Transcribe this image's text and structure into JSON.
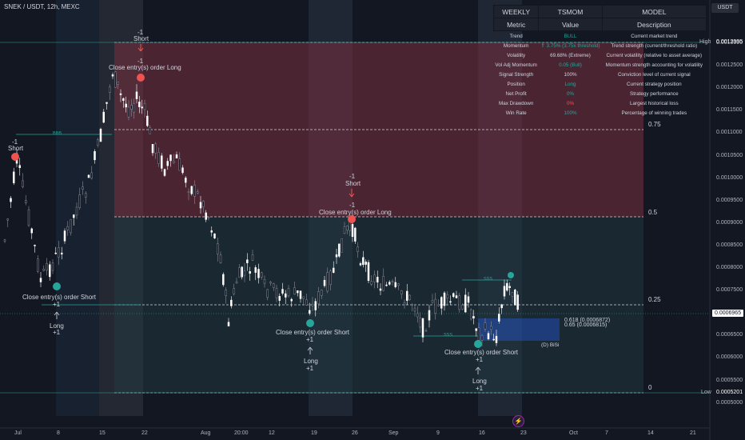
{
  "symbol": {
    "title": "SNEK / USDT, 12h, MEXC",
    "currency": "USDT"
  },
  "table": {
    "headers": [
      "WEEKLY",
      "TSMOM",
      "MODEL"
    ],
    "subheaders": [
      "Metric",
      "Value",
      "Description"
    ],
    "rows": [
      {
        "metric": "Trend",
        "value": "BULL",
        "color": "green",
        "desc": "Current market trend"
      },
      {
        "metric": "Momentum",
        "value": "⇑ 3.75% (3.75x threshold)",
        "color": "green",
        "desc": "Trend strength (current/threshold ratio)"
      },
      {
        "metric": "Volatility",
        "value": "69.68% (Extreme)",
        "color": "white",
        "desc": "Current volatility (relative to asset average)"
      },
      {
        "metric": "Vol Adj Momentum",
        "value": "0.05 (Bull)",
        "color": "green",
        "desc": "Momentum strength accounting for volatility"
      },
      {
        "metric": "Signal Strength",
        "value": "100%",
        "color": "white",
        "desc": "Conviction level of current signal"
      },
      {
        "metric": "Position",
        "value": "Long",
        "color": "green",
        "desc": "Current strategy position"
      },
      {
        "metric": "Net Profit",
        "value": "0%",
        "color": "green",
        "desc": "Strategy performance"
      },
      {
        "metric": "Max Drawdown",
        "value": "0%",
        "color": "red",
        "desc": "Largest historical loss"
      },
      {
        "metric": "Win Rate",
        "value": "100%",
        "color": "green",
        "desc": "Percentage of winning trades"
      }
    ]
  },
  "price_axis": {
    "ticks": [
      "0.0013000",
      "0.0012500",
      "0.0012000",
      "0.0011500",
      "0.0011000",
      "0.0010500",
      "0.0010000",
      "0.0009500",
      "0.0009000",
      "0.0008500",
      "0.0008000",
      "0.0007500",
      "0.0007000",
      "0.0006500",
      "0.0006000",
      "0.0005500",
      "0.0005000"
    ],
    "high_label": "High",
    "high_value": "0.0012995",
    "low_label": "Low",
    "low_value": "0.0005201",
    "current_value": "0.0006965"
  },
  "time_axis": [
    "Jul",
    "8",
    "15",
    "22",
    "Aug",
    "20:00",
    "12",
    "19",
    "26",
    "Sep",
    "9",
    "16",
    "23",
    "Oct",
    "7",
    "14",
    "21"
  ],
  "fib_levels": [
    "0.75",
    "0.5",
    "0.25",
    "0"
  ],
  "fib_small": [
    "0.618 (0.0006872)",
    "0.65 (0.0006815)"
  ],
  "annotations": {
    "short_minus": "-1",
    "short_label": "Short",
    "close_long": "Close entry(s) order Long",
    "close_short": "Close entry(s) order Short",
    "long_label": "Long",
    "long_plus": "+1",
    "bisi": "(D) BiSi",
    "sss": "SSS",
    "bbb": "BBB"
  },
  "colors": {
    "bg": "#131722",
    "up": "#26a69a",
    "down": "#ef5350",
    "red_zone": "#6e2a3a"
  }
}
